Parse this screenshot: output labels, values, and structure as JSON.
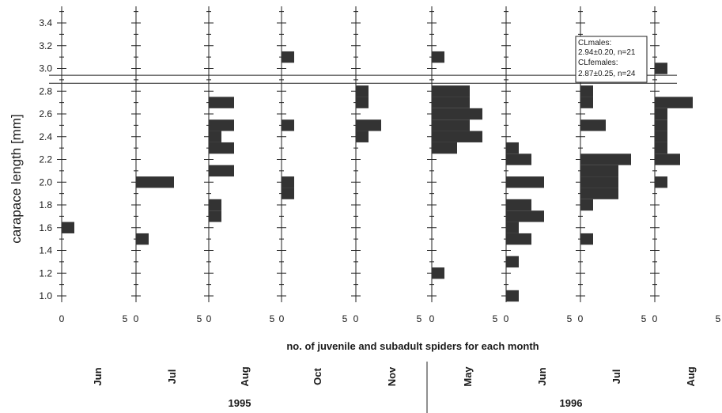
{
  "chart_data": {
    "type": "bar",
    "orientation": "horizontal-small-multiples",
    "ylabel": "carapace length [mm]",
    "xlabel": "no. of juvenile and subadult spiders for each month",
    "ylim": [
      0.9,
      3.6
    ],
    "yticks": [
      "1.0",
      "1.2",
      "1.4",
      "1.6",
      "1.8",
      "2.0",
      "2.2",
      "2.4",
      "2.6",
      "2.8",
      "3.0",
      "3.2",
      "3.4"
    ],
    "xlim": [
      0,
      5
    ],
    "xtick_labels": [
      "0",
      "5"
    ],
    "bin_width": 0.1,
    "panels": [
      {
        "month": "Jun",
        "year": "1995",
        "bars": [
          {
            "y": 1.6,
            "count": 1
          }
        ]
      },
      {
        "month": "Jul",
        "year": "1995",
        "bars": [
          {
            "y": 1.5,
            "count": 1
          },
          {
            "y": 2.0,
            "count": 3
          }
        ]
      },
      {
        "month": "Aug",
        "year": "1995",
        "bars": [
          {
            "y": 1.8,
            "count": 1
          },
          {
            "y": 1.7,
            "count": 1
          },
          {
            "y": 2.1,
            "count": 2
          },
          {
            "y": 2.3,
            "count": 2
          },
          {
            "y": 2.4,
            "count": 1
          },
          {
            "y": 2.5,
            "count": 2
          },
          {
            "y": 2.7,
            "count": 2
          }
        ]
      },
      {
        "month": "Oct",
        "year": "1995",
        "bars": [
          {
            "y": 1.9,
            "count": 1
          },
          {
            "y": 2.0,
            "count": 1
          },
          {
            "y": 2.5,
            "count": 1
          },
          {
            "y": 3.1,
            "count": 1
          }
        ]
      },
      {
        "month": "Nov",
        "year": "1995",
        "bars": [
          {
            "y": 2.4,
            "count": 1
          },
          {
            "y": 2.5,
            "count": 2
          },
          {
            "y": 2.7,
            "count": 1
          },
          {
            "y": 2.8,
            "count": 1
          }
        ]
      },
      {
        "month": "May",
        "year": "1996",
        "bars": [
          {
            "y": 1.2,
            "count": 1
          },
          {
            "y": 2.3,
            "count": 2
          },
          {
            "y": 2.4,
            "count": 4
          },
          {
            "y": 2.5,
            "count": 3
          },
          {
            "y": 2.6,
            "count": 4
          },
          {
            "y": 2.7,
            "count": 3
          },
          {
            "y": 2.8,
            "count": 3
          },
          {
            "y": 3.1,
            "count": 1
          }
        ]
      },
      {
        "month": "Jun",
        "year": "1996",
        "bars": [
          {
            "y": 1.0,
            "count": 1
          },
          {
            "y": 1.3,
            "count": 1
          },
          {
            "y": 1.5,
            "count": 2
          },
          {
            "y": 1.6,
            "count": 1
          },
          {
            "y": 1.7,
            "count": 3
          },
          {
            "y": 1.8,
            "count": 2
          },
          {
            "y": 2.0,
            "count": 3
          },
          {
            "y": 2.2,
            "count": 2
          },
          {
            "y": 2.3,
            "count": 1
          }
        ]
      },
      {
        "month": "Jul",
        "year": "1996",
        "bars": [
          {
            "y": 1.5,
            "count": 1
          },
          {
            "y": 1.8,
            "count": 1
          },
          {
            "y": 1.9,
            "count": 3
          },
          {
            "y": 2.0,
            "count": 3
          },
          {
            "y": 2.1,
            "count": 3
          },
          {
            "y": 2.2,
            "count": 4
          },
          {
            "y": 2.5,
            "count": 2
          },
          {
            "y": 2.7,
            "count": 1
          },
          {
            "y": 2.8,
            "count": 1
          }
        ]
      },
      {
        "month": "Aug",
        "year": "1996",
        "bars": [
          {
            "y": 2.0,
            "count": 1
          },
          {
            "y": 2.2,
            "count": 2
          },
          {
            "y": 2.3,
            "count": 1
          },
          {
            "y": 2.4,
            "count": 1
          },
          {
            "y": 2.5,
            "count": 1
          },
          {
            "y": 2.6,
            "count": 1
          },
          {
            "y": 2.7,
            "count": 3
          },
          {
            "y": 3.0,
            "count": 1
          }
        ]
      }
    ],
    "reference_lines": [
      {
        "y": 2.94,
        "label": "CLmales"
      },
      {
        "y": 2.87,
        "label": "CLfemales"
      }
    ],
    "annotation": {
      "lines": [
        "CLmales:",
        "2.94±0.20, n=21",
        "CLfemales:",
        "2.87±0.25, n=24"
      ]
    },
    "years": [
      "1995",
      "1996"
    ],
    "colors": {
      "bar": "#333333",
      "axis": "#222222"
    }
  }
}
